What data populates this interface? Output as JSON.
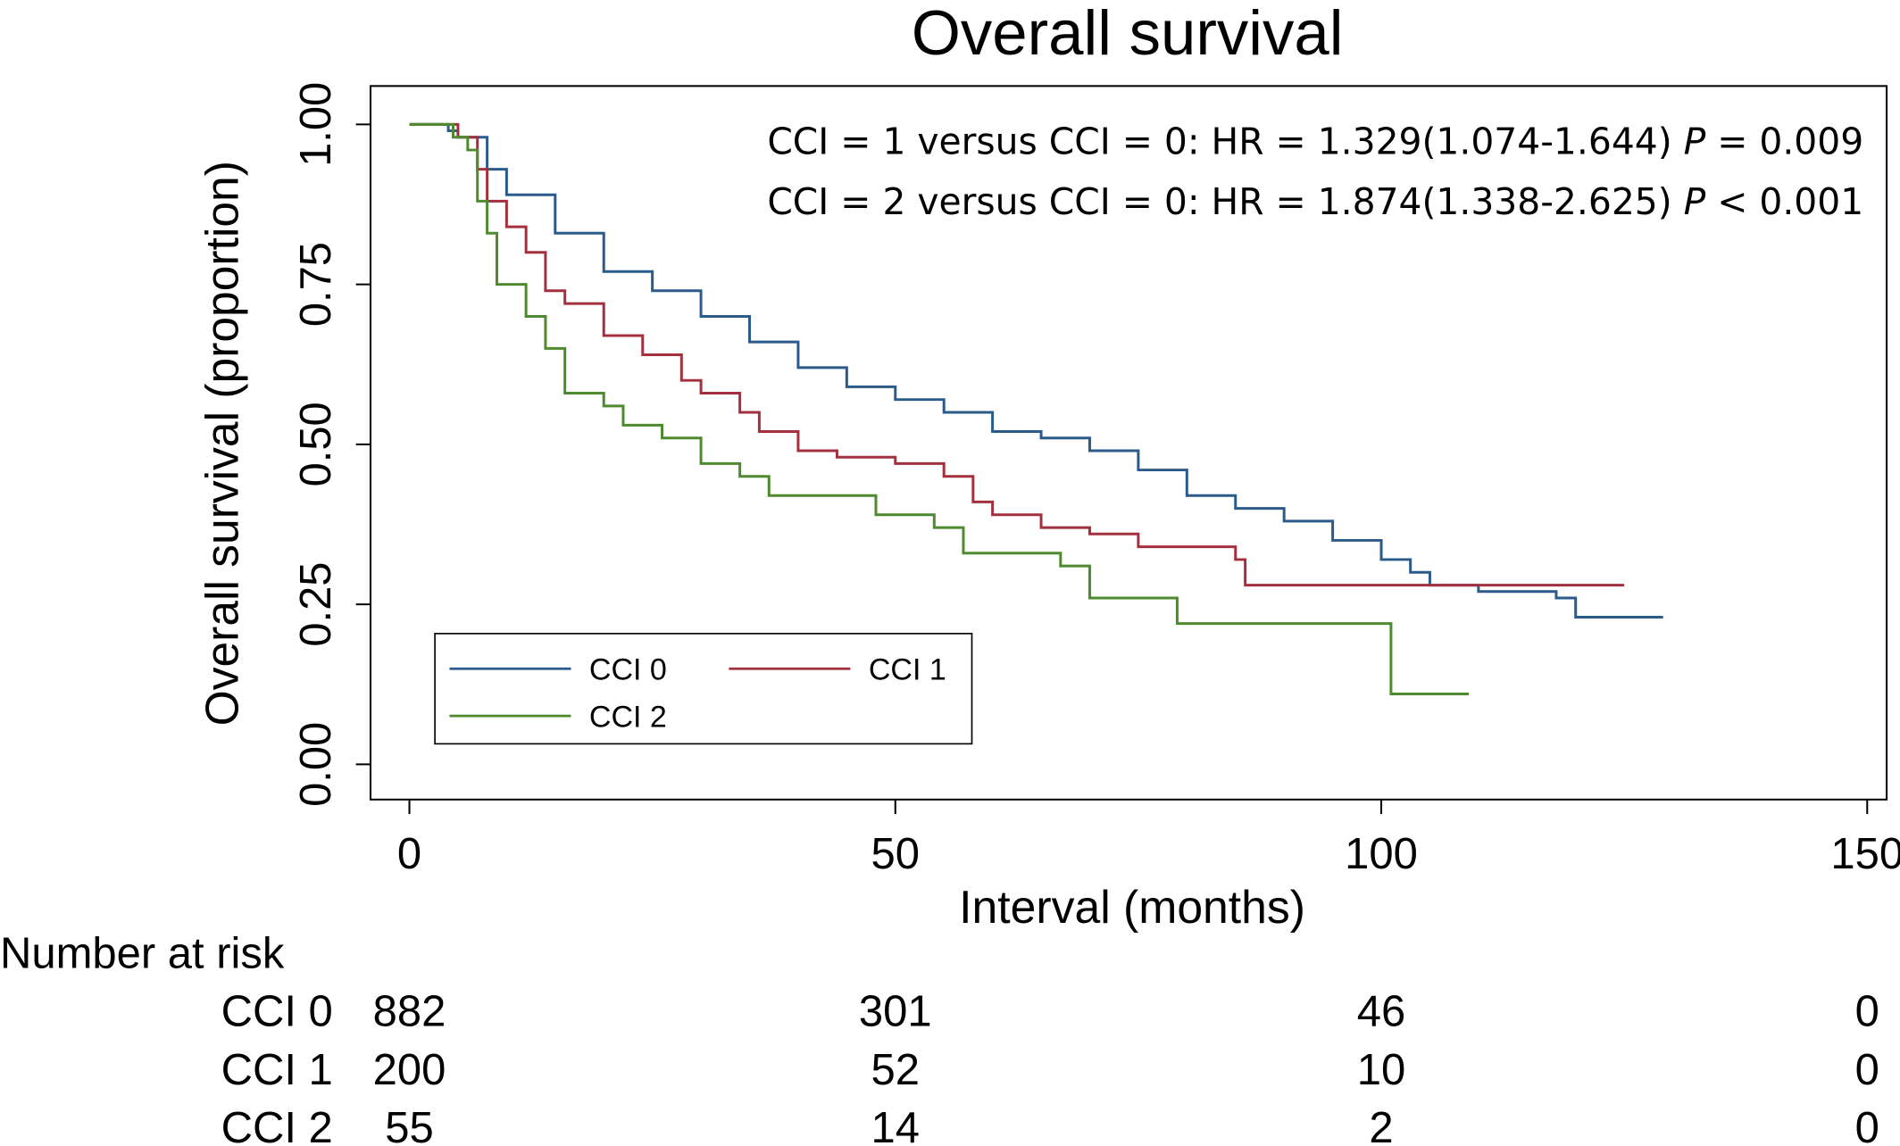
{
  "chart_data": {
    "type": "line",
    "step": "post",
    "title": "Overall survival",
    "xlabel": "Interval (months)",
    "ylabel": "Overall survival (proportion)",
    "xlim": [
      -4,
      152
    ],
    "ylim": [
      -0.055,
      1.06
    ],
    "xticks": [
      0,
      50,
      100,
      150
    ],
    "yticks": [
      {
        "value": 0,
        "label": "0.00"
      },
      {
        "value": 0.25,
        "label": "0.25"
      },
      {
        "value": 0.5,
        "label": "0.50"
      },
      {
        "value": 0.75,
        "label": "0.75"
      },
      {
        "value": 1,
        "label": "1.00"
      }
    ],
    "annotations": [
      {
        "text": "CCI = 1 versus CCI = 0: HR = 1.329(1.074-1.644)",
        "p": "P",
        "ptext": "= 0.009"
      },
      {
        "text": "CCI = 2 versus CCI = 0: HR = 1.874(1.338-2.625)",
        "p": "P",
        "ptext": "< 0.001"
      }
    ],
    "series": [
      {
        "name": "CCI 0",
        "color": "#2b5b8a",
        "x": [
          0,
          4,
          5,
          8,
          10,
          15,
          20,
          25,
          30,
          35,
          40,
          45,
          50,
          55,
          60,
          65,
          70,
          75,
          80,
          85,
          90,
          95,
          100,
          103,
          105,
          110,
          118,
          120,
          129
        ],
        "values": [
          1,
          0.99,
          0.98,
          0.93,
          0.89,
          0.83,
          0.77,
          0.74,
          0.7,
          0.66,
          0.62,
          0.59,
          0.57,
          0.55,
          0.52,
          0.51,
          0.49,
          0.46,
          0.42,
          0.4,
          0.38,
          0.35,
          0.32,
          0.3,
          0.28,
          0.27,
          0.26,
          0.23,
          0.23
        ]
      },
      {
        "name": "CCI 1",
        "color": "#a3303f",
        "x": [
          0,
          5,
          7,
          8,
          10,
          12,
          14,
          16,
          20,
          24,
          28,
          30,
          34,
          36,
          40,
          44,
          50,
          55,
          58,
          60,
          65,
          70,
          75,
          85,
          86,
          125
        ],
        "values": [
          1,
          0.98,
          0.93,
          0.88,
          0.84,
          0.8,
          0.74,
          0.72,
          0.67,
          0.64,
          0.6,
          0.58,
          0.55,
          0.52,
          0.49,
          0.48,
          0.47,
          0.45,
          0.41,
          0.39,
          0.37,
          0.36,
          0.34,
          0.32,
          0.28,
          0.28
        ]
      },
      {
        "name": "CCI 2",
        "color": "#4e8a2e",
        "x": [
          0,
          4.5,
          6,
          7,
          8,
          9,
          12,
          14,
          16,
          20,
          22,
          26,
          30,
          34,
          37,
          48,
          54,
          57,
          67,
          70,
          79,
          101,
          109
        ],
        "values": [
          1,
          0.98,
          0.96,
          0.88,
          0.83,
          0.75,
          0.7,
          0.65,
          0.58,
          0.56,
          0.53,
          0.51,
          0.47,
          0.45,
          0.42,
          0.39,
          0.37,
          0.33,
          0.31,
          0.26,
          0.22,
          0.11,
          0.11
        ]
      }
    ],
    "risk_table": {
      "title": "Number at risk",
      "times": [
        0,
        50,
        100,
        150
      ],
      "rows": [
        {
          "label": "CCI 0",
          "values": [
            882,
            301,
            46,
            0
          ]
        },
        {
          "label": "CCI 1",
          "values": [
            200,
            52,
            10,
            0
          ]
        },
        {
          "label": "CCI 2",
          "values": [
            55,
            14,
            2,
            0
          ]
        }
      ]
    }
  }
}
